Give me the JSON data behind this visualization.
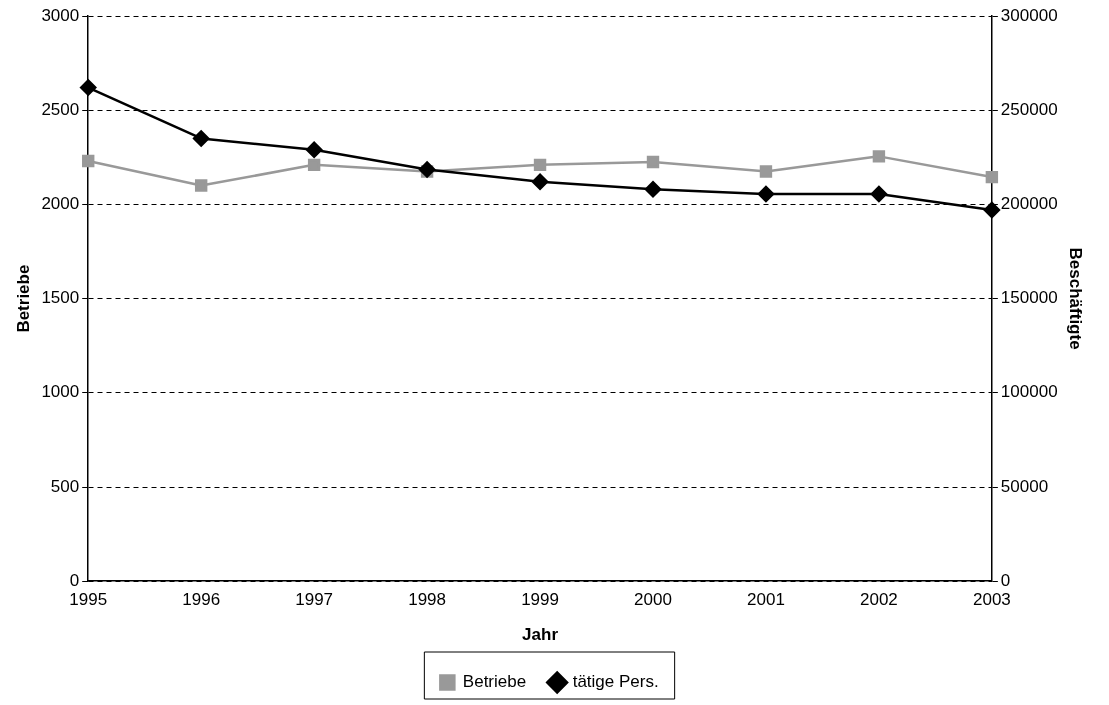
{
  "chart_data": {
    "type": "line",
    "xlabel": "Jahr",
    "ylabel": "Betriebe",
    "y2label": "Beschäftigte",
    "x": [
      1995,
      1996,
      1997,
      1998,
      1999,
      2000,
      2001,
      2002,
      2003
    ],
    "xlim": [
      1995,
      2003
    ],
    "xticks": [
      1995,
      1996,
      1997,
      1998,
      1999,
      2000,
      2001,
      2002,
      2003
    ],
    "ylim": [
      0,
      3000
    ],
    "yticks": [
      0,
      500,
      1000,
      1500,
      2000,
      2500,
      3000
    ],
    "y2lim": [
      0,
      300000
    ],
    "y2ticks": [
      0,
      50000,
      100000,
      150000,
      200000,
      250000,
      300000
    ],
    "grid": "y",
    "legend": "bottom",
    "line_style": "solid",
    "series": [
      {
        "name": "Betriebe",
        "color": "#999999",
        "marker": "square",
        "values": [
          2230,
          2100,
          2210,
          2175,
          2210,
          2225,
          2175,
          2255,
          2145
        ]
      },
      {
        "name": "tätige Pers.",
        "color": "#000000",
        "marker": "diamond",
        "axis": "y2",
        "values": [
          262000,
          235000,
          229000,
          218500,
          212000,
          208000,
          205500,
          205500,
          197000
        ]
      }
    ]
  }
}
